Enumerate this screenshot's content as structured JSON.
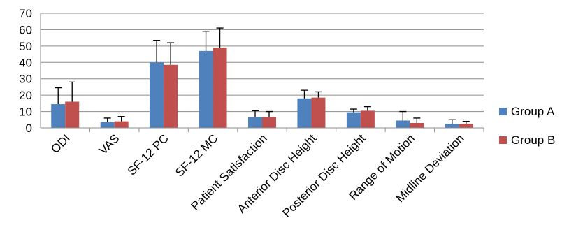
{
  "chart_data": {
    "type": "bar",
    "title": "",
    "xlabel": "",
    "ylabel": "",
    "ylim": [
      0,
      70
    ],
    "ytick_step": 10,
    "grid": true,
    "legend_position": "right",
    "categories": [
      "ODI",
      "VAS",
      "SF-12 PC",
      "SF-12 MC",
      "Patient Satisfaction",
      "Anterior Disc Height",
      "Posterior Disc Height",
      "Range of Motion",
      "Midline Deviation"
    ],
    "series": [
      {
        "name": "Group A",
        "color": "#4f81bd",
        "values": [
          14.5,
          3.5,
          40,
          47,
          6.5,
          18,
          9.5,
          4.5,
          2.5
        ],
        "error": [
          10,
          2.5,
          13.5,
          12,
          4,
          5,
          2,
          5.5,
          2.5
        ]
      },
      {
        "name": "Group B",
        "color": "#c0504d",
        "values": [
          16,
          4,
          38.5,
          49,
          6.5,
          18.5,
          10.5,
          3,
          2.5
        ],
        "error": [
          12,
          3,
          13.5,
          12,
          3.5,
          3.5,
          2.5,
          3,
          1.5
        ]
      }
    ]
  }
}
